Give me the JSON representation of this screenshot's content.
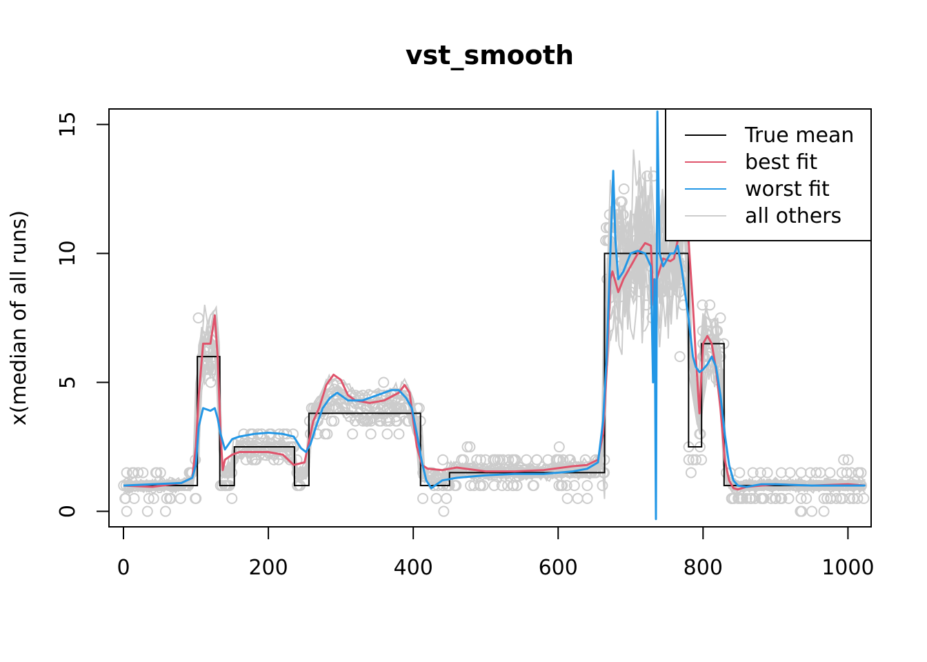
{
  "chart_data": {
    "type": "line",
    "title": "vst_smooth",
    "xlabel": "",
    "ylabel": "x(median of all runs)",
    "xlim": [
      -20,
      1032
    ],
    "ylim": [
      -0.6,
      15.6
    ],
    "x_ticks": [
      0,
      200,
      400,
      600,
      800,
      1000
    ],
    "x_tick_labels": [
      "0",
      "200",
      "400",
      "600",
      "800",
      "1000"
    ],
    "y_ticks": [
      0,
      5,
      10,
      15
    ],
    "y_tick_labels": [
      "0",
      "5",
      "10",
      "15"
    ],
    "grid": false,
    "legend_position": "top-right",
    "colors": {
      "true_mean": "#000000",
      "best_fit": "#DF536B",
      "worst_fit": "#2297E6",
      "others": "#CCCCCC"
    },
    "legend": [
      {
        "label": "True mean",
        "series": "true_mean"
      },
      {
        "label": "best fit",
        "series": "best_fit"
      },
      {
        "label": "worst fit",
        "series": "worst_fit"
      },
      {
        "label": "all others",
        "series": "others"
      }
    ],
    "series": [
      {
        "name": "True mean",
        "key": "true_mean",
        "style": "step",
        "segments": [
          {
            "x0": 0,
            "x1": 102,
            "y": 1
          },
          {
            "x0": 102,
            "x1": 133,
            "y": 6
          },
          {
            "x0": 133,
            "x1": 153,
            "y": 1
          },
          {
            "x0": 153,
            "x1": 236,
            "y": 2.5
          },
          {
            "x0": 236,
            "x1": 256,
            "y": 1
          },
          {
            "x0": 256,
            "x1": 410,
            "y": 3.8
          },
          {
            "x0": 410,
            "x1": 450,
            "y": 1
          },
          {
            "x0": 450,
            "x1": 664,
            "y": 1.5
          },
          {
            "x0": 664,
            "x1": 780,
            "y": 10
          },
          {
            "x0": 780,
            "x1": 798,
            "y": 2.5
          },
          {
            "x0": 798,
            "x1": 829,
            "y": 6.5
          },
          {
            "x0": 829,
            "x1": 1024,
            "y": 1
          }
        ]
      },
      {
        "name": "best fit",
        "key": "best_fit",
        "x": [
          0,
          40,
          80,
          95,
          100,
          104,
          110,
          120,
          126,
          130,
          134,
          137,
          140,
          150,
          160,
          180,
          200,
          220,
          235,
          250,
          262,
          270,
          280,
          290,
          300,
          310,
          320,
          340,
          360,
          380,
          388,
          395,
          400,
          405,
          412,
          420,
          440,
          460,
          500,
          540,
          580,
          620,
          640,
          655,
          662,
          667,
          672,
          675,
          678,
          683,
          690,
          700,
          710,
          720,
          728,
          732,
          736,
          745,
          755,
          760,
          765,
          770,
          775,
          780,
          786,
          790,
          795,
          800,
          806,
          812,
          818,
          824,
          830,
          836,
          842,
          848,
          860,
          900,
          950,
          1000,
          1024
        ],
        "y": [
          1.0,
          0.95,
          1.1,
          1.3,
          2.5,
          4.5,
          6.5,
          6.5,
          7.6,
          6.0,
          3.0,
          1.6,
          2.0,
          2.2,
          2.3,
          2.3,
          2.3,
          2.2,
          1.8,
          1.9,
          3.5,
          4.0,
          4.9,
          5.3,
          5.1,
          4.5,
          4.3,
          4.2,
          4.3,
          4.6,
          4.9,
          4.6,
          3.5,
          2.5,
          1.8,
          1.65,
          1.6,
          1.7,
          1.55,
          1.55,
          1.6,
          1.75,
          1.8,
          2.0,
          3.0,
          5.5,
          9.0,
          9.3,
          9.0,
          8.5,
          9.0,
          9.5,
          10.0,
          10.4,
          10.3,
          8.0,
          9.0,
          9.8,
          9.7,
          9.8,
          10.5,
          11.0,
          11.5,
          10.5,
          8.0,
          6.0,
          3.8,
          6.5,
          6.8,
          6.5,
          5.5,
          4.0,
          2.0,
          1.2,
          0.9,
          0.85,
          0.95,
          1.05,
          1.0,
          1.05,
          1.0
        ]
      },
      {
        "name": "worst fit",
        "key": "worst_fit",
        "x": [
          0,
          40,
          80,
          95,
          100,
          104,
          110,
          120,
          126,
          130,
          134,
          140,
          150,
          160,
          180,
          200,
          220,
          235,
          245,
          252,
          258,
          266,
          275,
          285,
          295,
          310,
          330,
          350,
          370,
          380,
          390,
          398,
          405,
          412,
          418,
          425,
          440,
          460,
          500,
          540,
          580,
          620,
          640,
          655,
          662,
          667,
          672,
          676,
          679,
          683,
          690,
          700,
          710,
          720,
          728,
          731,
          733,
          735,
          737,
          740,
          745,
          755,
          760,
          765,
          770,
          775,
          780,
          786,
          790,
          795,
          800,
          806,
          812,
          818,
          824,
          830,
          836,
          842,
          848,
          860,
          880,
          900,
          950,
          1000,
          1024
        ],
        "y": [
          1.0,
          1.05,
          1.1,
          1.3,
          1.8,
          3.3,
          4.0,
          3.9,
          4.0,
          3.6,
          3.0,
          2.4,
          2.8,
          2.9,
          3.0,
          3.05,
          3.0,
          2.9,
          2.45,
          2.3,
          2.6,
          3.3,
          4.0,
          4.4,
          4.6,
          4.3,
          4.3,
          4.5,
          4.7,
          4.7,
          4.4,
          4.0,
          3.0,
          1.9,
          1.2,
          0.9,
          1.2,
          1.3,
          1.4,
          1.45,
          1.45,
          1.55,
          1.65,
          1.9,
          3.5,
          6.0,
          10.0,
          13.2,
          10.5,
          9.0,
          9.3,
          10.0,
          10.1,
          10.0,
          9.5,
          5.0,
          9.0,
          -0.3,
          15.5,
          10.0,
          9.5,
          10.0,
          10.0,
          10.3,
          9.5,
          8.5,
          7.5,
          6.0,
          5.6,
          5.4,
          5.5,
          5.7,
          6.0,
          5.6,
          4.5,
          3.0,
          1.8,
          1.2,
          1.0,
          0.95,
          1.05,
          1.05,
          1.0,
          1.0,
          1.0
        ]
      },
      {
        "name": "all others",
        "key": "others",
        "note": "grey curves and grey open-circle observations"
      }
    ]
  }
}
